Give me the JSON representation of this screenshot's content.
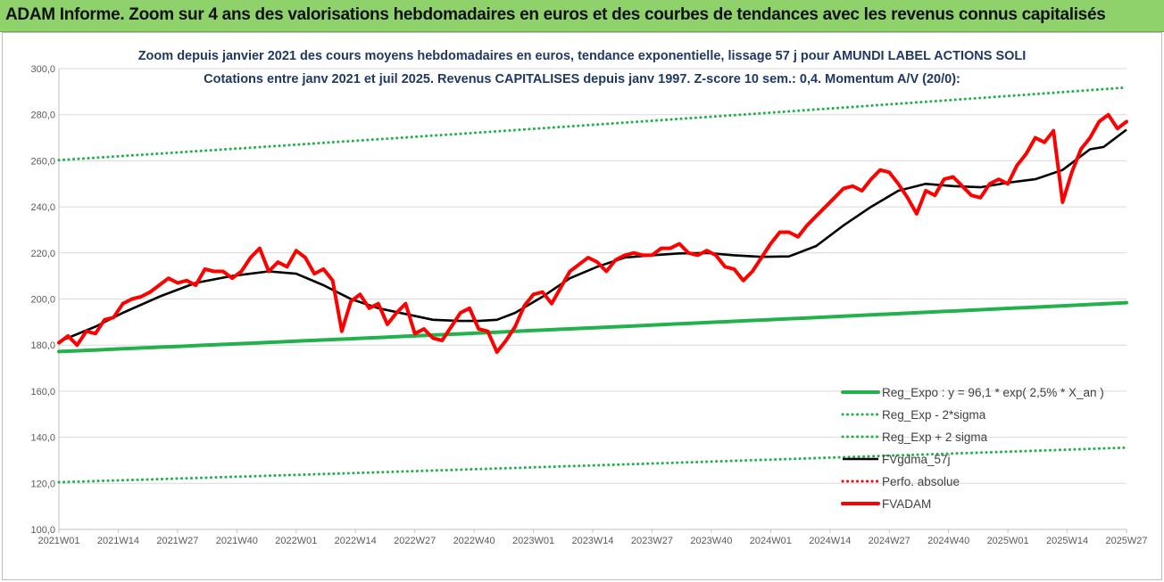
{
  "header": {
    "title": "ADAM Informe. Zoom sur 4 ans des valorisations hebdomadaires en euros et des courbes de tendances avec les revenus connus capitalisés"
  },
  "chart_data": {
    "type": "line",
    "title_line1": "Zoom depuis janvier 2021 des cours moyens hebdomadaires en euros, tendance exponentielle, lissage 57 j pour AMUNDI LABEL ACTIONS SOLI",
    "title_line2": "Cotations entre janv 2021 et juil 2025. Revenus CAPITALISES depuis janv 1997. Z-score 10 sem.: 0,4. Momentum A/V (20/0):",
    "ylim": [
      100,
      300
    ],
    "yticks": [
      "100,0",
      "120,0",
      "140,0",
      "160,0",
      "180,0",
      "200,0",
      "220,0",
      "240,0",
      "260,0",
      "280,0",
      "300,0"
    ],
    "xticks": [
      "2021W01",
      "2021W14",
      "2021W27",
      "2021W40",
      "2022W01",
      "2022W14",
      "2022W27",
      "2022W40",
      "2023W01",
      "2023W14",
      "2023W27",
      "2023W40",
      "2024W01",
      "2024W14",
      "2024W27",
      "2024W40",
      "2025W01",
      "2025W14",
      "2025W27"
    ],
    "grid": "horizontal",
    "legend_position": "bottom-right",
    "series": [
      {
        "name": "Reg_Expo : y = 96,1 * exp( 2,5% *  X_an )",
        "style": "solid-thick",
        "color": "#22b14c",
        "x": [
          0,
          234
        ],
        "values": [
          177.2,
          198.4
        ]
      },
      {
        "name": "Reg_Exp - 2*sigma",
        "style": "dotted",
        "color": "#22b14c",
        "x": [
          0,
          234
        ],
        "values": [
          120.5,
          135.5
        ]
      },
      {
        "name": "Reg_Exp + 2 sigma",
        "style": "dotted",
        "color": "#22b14c",
        "x": [
          0,
          234
        ],
        "values": [
          260.3,
          291.8
        ]
      },
      {
        "name": "FVgdma_57j",
        "style": "solid",
        "color": "#000000",
        "x": [
          0,
          8,
          14,
          22,
          30,
          38,
          46,
          52,
          58,
          64,
          70,
          76,
          82,
          88,
          92,
          96,
          100,
          106,
          112,
          118,
          124,
          130,
          136,
          142,
          148,
          154,
          160,
          166,
          172,
          178,
          184,
          190,
          196,
          202,
          208,
          214,
          220,
          226,
          229,
          234
        ],
        "values": [
          181.5,
          188.0,
          194.0,
          201.0,
          207.0,
          210.0,
          212.0,
          211.0,
          206.0,
          200.0,
          196.0,
          193.5,
          191.0,
          190.5,
          190.5,
          191.0,
          194.0,
          201.0,
          209.0,
          214.0,
          218.0,
          219.0,
          219.8,
          220.0,
          219.0,
          218.3,
          218.5,
          223.0,
          232.0,
          240.0,
          247.0,
          250.0,
          249.0,
          248.5,
          250.5,
          252.0,
          256.0,
          265.0,
          266.0,
          273.5
        ]
      },
      {
        "name": "Perfo. absolue",
        "style": "dotted",
        "color": "#ff0000",
        "x": [],
        "values": []
      },
      {
        "name": "FVADAM",
        "style": "solid-thick",
        "color": "#ff0000",
        "x": [
          0,
          2,
          4,
          6,
          8,
          10,
          12,
          14,
          16,
          18,
          20,
          22,
          24,
          26,
          28,
          30,
          32,
          34,
          36,
          38,
          40,
          42,
          44,
          46,
          48,
          50,
          52,
          54,
          56,
          58,
          60,
          62,
          64,
          66,
          68,
          70,
          72,
          74,
          76,
          78,
          80,
          82,
          84,
          86,
          88,
          90,
          92,
          94,
          96,
          98,
          100,
          102,
          104,
          106,
          108,
          110,
          112,
          114,
          116,
          118,
          120,
          122,
          124,
          126,
          128,
          130,
          132,
          134,
          136,
          138,
          140,
          142,
          144,
          146,
          148,
          150,
          152,
          154,
          156,
          158,
          160,
          162,
          164,
          166,
          168,
          170,
          172,
          174,
          176,
          178,
          180,
          182,
          184,
          186,
          188,
          190,
          192,
          194,
          196,
          198,
          200,
          202,
          204,
          206,
          208,
          210,
          212,
          214,
          216,
          218,
          220,
          222,
          224,
          226,
          228,
          230,
          232,
          234
        ],
        "values": [
          181,
          184,
          180,
          186,
          185,
          191,
          192,
          198,
          200,
          201,
          203,
          206,
          209,
          207,
          208,
          206,
          213,
          212,
          212,
          209,
          212,
          218,
          222,
          212,
          216,
          214,
          221,
          218,
          211,
          213,
          208,
          186,
          199,
          202,
          196,
          198,
          189,
          194,
          198,
          185,
          187,
          183,
          182,
          188,
          194,
          196,
          187,
          186,
          177,
          182,
          188,
          197,
          202,
          203,
          198,
          205,
          212,
          215,
          218,
          216,
          212,
          217,
          219,
          220,
          219,
          219,
          222,
          222,
          224,
          220,
          219,
          221,
          219,
          214,
          213,
          208,
          212,
          218,
          224,
          229,
          229,
          227,
          232,
          236,
          240,
          244,
          248,
          249,
          247,
          252,
          256,
          255,
          250,
          244,
          237,
          247,
          245,
          252,
          253,
          249,
          245,
          244,
          250,
          252,
          250,
          258,
          263,
          270,
          268,
          273,
          242,
          255,
          265,
          270,
          277,
          280,
          274,
          277
        ]
      }
    ]
  }
}
